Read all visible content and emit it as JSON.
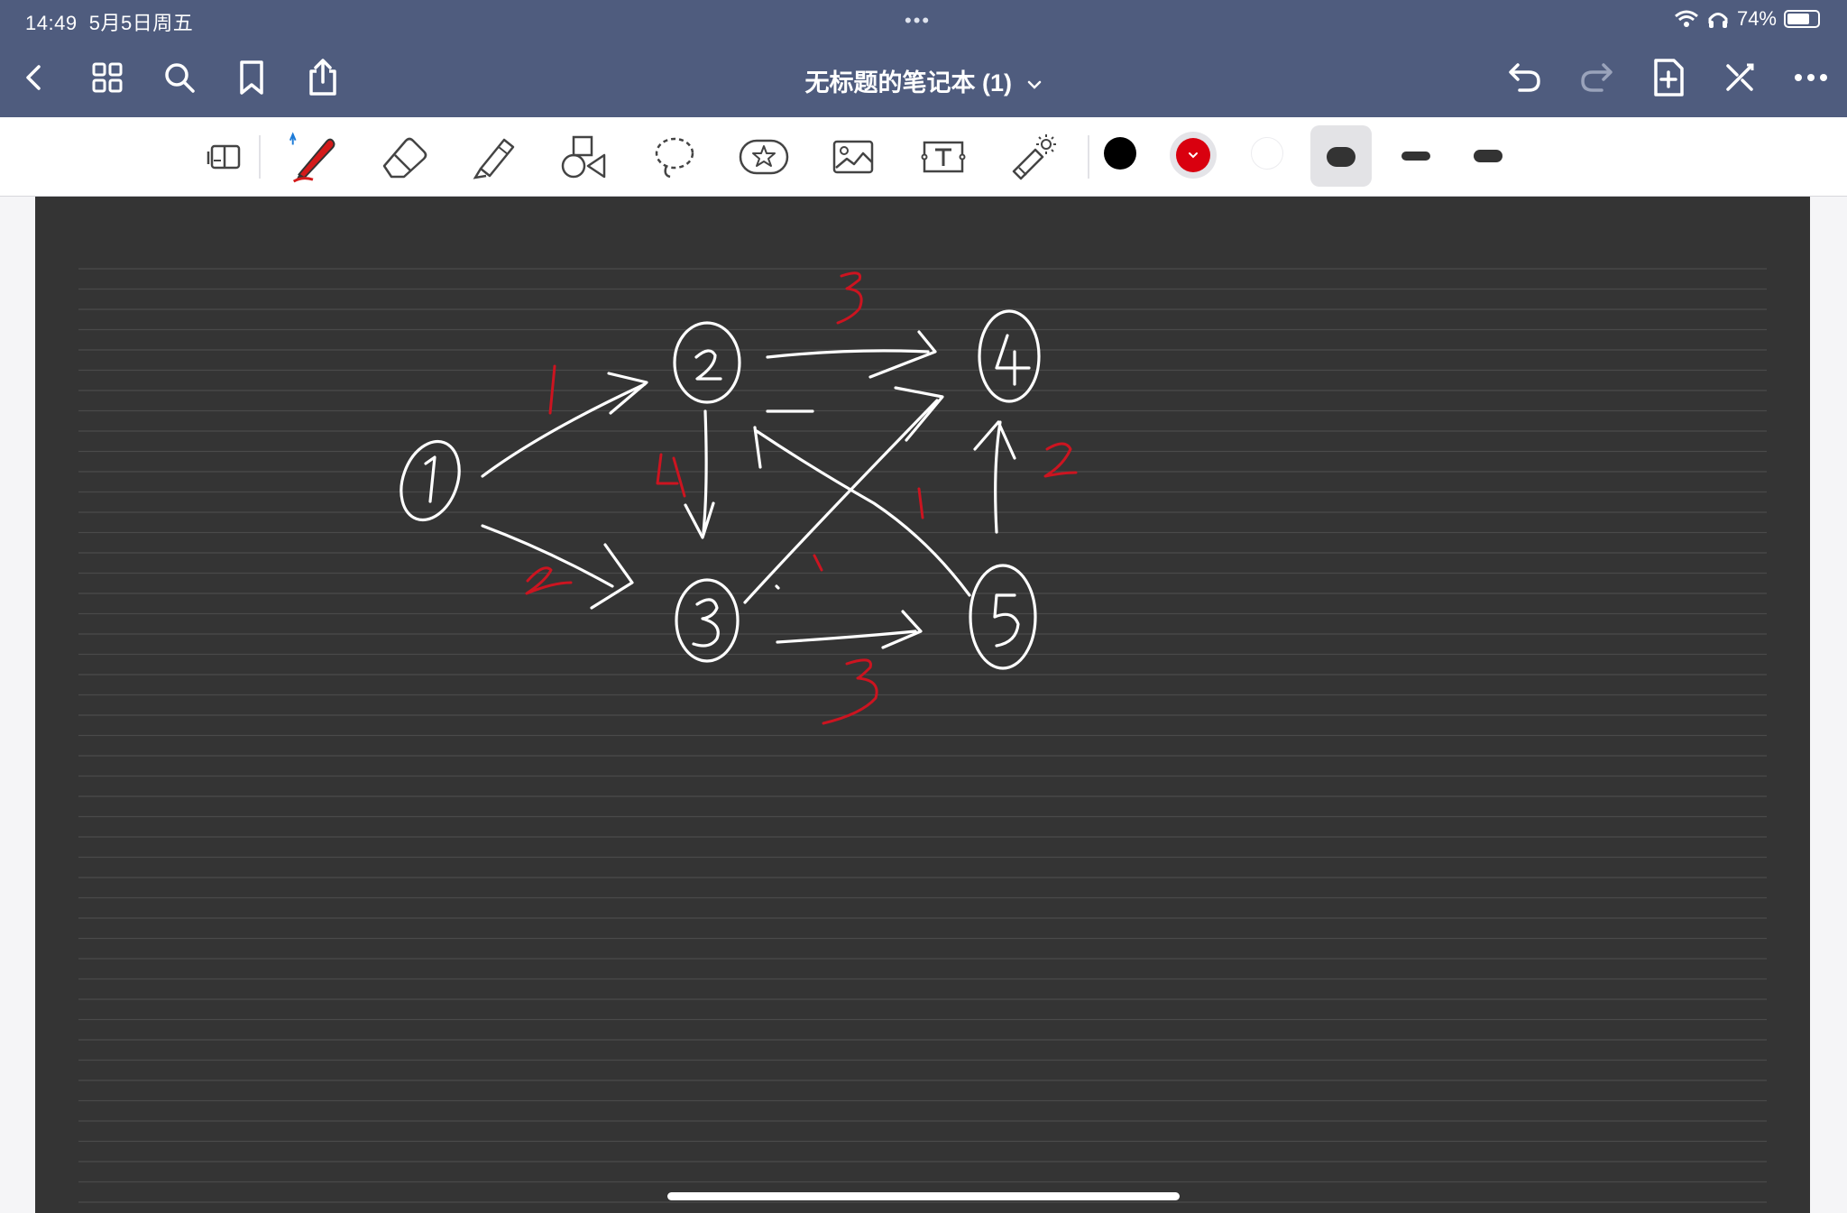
{
  "status_bar": {
    "time": "14:49",
    "date": "5月5日周五",
    "center_dots": "•••",
    "battery_text": "74%",
    "battery_level": 0.74,
    "icons": [
      "wifi-icon",
      "headphones-icon",
      "battery-icon"
    ]
  },
  "nav": {
    "title": "无标题的笔记本 (1)",
    "left_icons": [
      "back-icon",
      "grid-icon",
      "search-icon",
      "bookmark-icon",
      "share-icon"
    ],
    "right_icons": [
      "undo-icon",
      "redo-icon",
      "add-page-icon",
      "close-tools-icon",
      "more-icon"
    ]
  },
  "toolbar": {
    "tools": [
      "page-layout-icon",
      "pen-icon",
      "eraser-icon",
      "highlighter-icon",
      "shapes-icon",
      "lasso-icon",
      "sticker-icon",
      "image-icon",
      "text-icon",
      "laser-pointer-icon"
    ],
    "active_tool": "pen",
    "colors": [
      "#000000",
      "#d9000f",
      "#ffffff"
    ],
    "selected_color": "#d9000f",
    "thickness_levels": 3,
    "selected_thickness": 1
  },
  "canvas": {
    "background": "#343434",
    "rule_color": "#4a4a4a",
    "ink_colors": {
      "white": "#ffffff",
      "red": "#cc1420"
    },
    "nodes": [
      "1",
      "2",
      "3",
      "4",
      "5"
    ],
    "edge_weights": [
      "1",
      "2",
      "3",
      "4",
      "1",
      "1",
      "3",
      "2"
    ]
  }
}
